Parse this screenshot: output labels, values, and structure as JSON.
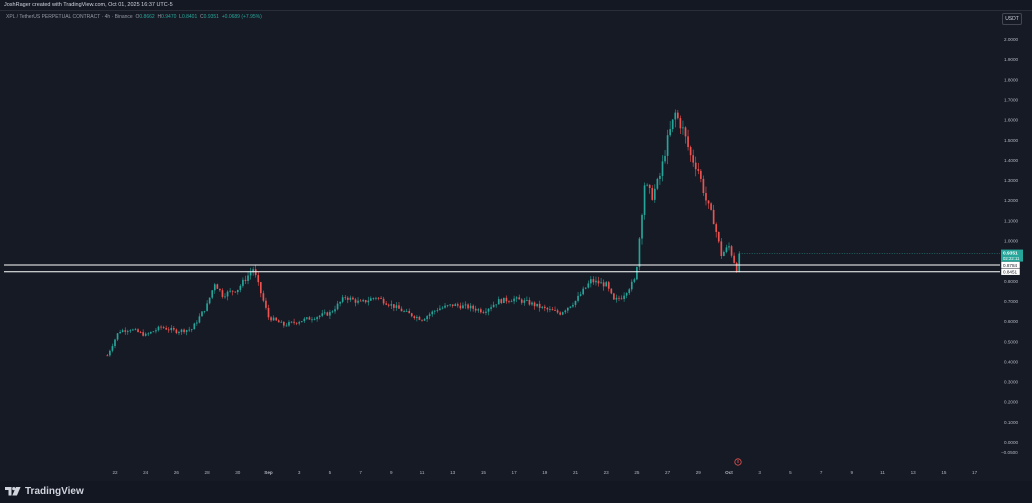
{
  "header": {
    "attribution": "JoshRager created with TradingView.com, Oct 01, 2025 16:37 UTC-5",
    "currency": "USDT"
  },
  "symbol": {
    "name": "XPL / TetherUS PERPETUAL CONTRACT · 4h · Binance",
    "open_label": "O",
    "open": "0.8662",
    "high_label": "H",
    "high": "0.9470",
    "low_label": "L",
    "low": "0.8401",
    "close_label": "C",
    "close": "0.9351",
    "change": "+0.0689 (+7.95%)"
  },
  "footer": {
    "brand": "TradingView"
  },
  "colors": {
    "up": "#26a69a",
    "down": "#ef5350",
    "bg": "#161a25",
    "grid": "#1f2330",
    "level": "#ffffff"
  },
  "icons": [
    "tradingview-logo-icon",
    "event-marker-icon"
  ],
  "chart_data": {
    "type": "candlestick",
    "timeframe": "4h",
    "y_axis": {
      "min": -0.05,
      "max": 2.0,
      "ticks": [
        "2.0000",
        "1.9000",
        "1.8000",
        "1.7000",
        "1.6000",
        "1.5000",
        "1.4000",
        "1.3000",
        "1.2000",
        "1.1000",
        "1.0000",
        "0.9000",
        "0.8000",
        "0.7000",
        "0.6000",
        "0.5000",
        "0.4000",
        "0.3000",
        "0.2000",
        "0.1000",
        "0.0000"
      ],
      "neg_tick": "−0.0500"
    },
    "x_axis": {
      "ticks": [
        "22",
        "24",
        "26",
        "28",
        "30",
        "Sep",
        "3",
        "5",
        "7",
        "9",
        "11",
        "13",
        "15",
        "17",
        "19",
        "21",
        "23",
        "25",
        "27",
        "29",
        "Oct",
        "3",
        "5",
        "7",
        "9",
        "11",
        "13",
        "15",
        "17"
      ]
    },
    "levels": [
      0.8784,
      0.8451
    ],
    "level_labels": [
      "0.8784",
      "0.8451"
    ],
    "last_price": "0.9351",
    "countdown": "02:22:11",
    "anchors": [
      [
        "Aug 21 12:00",
        0.43
      ],
      [
        "Aug 22 06:00",
        0.55
      ],
      [
        "Aug 23",
        0.56
      ],
      [
        "Aug 24",
        0.53
      ],
      [
        "Aug 25",
        0.57
      ],
      [
        "Aug 26",
        0.55
      ],
      [
        "Aug 27",
        0.56
      ],
      [
        "Aug 28",
        0.68
      ],
      [
        "Aug 28 12:00",
        0.79
      ],
      [
        "Aug 29",
        0.73
      ],
      [
        "Aug 30",
        0.76
      ],
      [
        "Aug 31",
        0.86
      ],
      [
        "Sep 1",
        0.62
      ],
      [
        "Sep 2",
        0.58
      ],
      [
        "Sep 3",
        0.6
      ],
      [
        "Sep 4",
        0.62
      ],
      [
        "Sep 5",
        0.64
      ],
      [
        "Sep 6",
        0.72
      ],
      [
        "Sep 7",
        0.69
      ],
      [
        "Sep 8",
        0.72
      ],
      [
        "Sep 9",
        0.68
      ],
      [
        "Sep 10",
        0.64
      ],
      [
        "Sep 11",
        0.61
      ],
      [
        "Sep 12",
        0.66
      ],
      [
        "Sep 13",
        0.68
      ],
      [
        "Sep 14",
        0.67
      ],
      [
        "Sep 15",
        0.65
      ],
      [
        "Sep 16",
        0.7
      ],
      [
        "Sep 17",
        0.71
      ],
      [
        "Sep 18",
        0.69
      ],
      [
        "Sep 19",
        0.66
      ],
      [
        "Sep 20",
        0.64
      ],
      [
        "Sep 21",
        0.7
      ],
      [
        "Sep 22",
        0.8
      ],
      [
        "Sep 23",
        0.78
      ],
      [
        "Sep 23 12:00",
        0.7
      ],
      [
        "Sep 24",
        0.72
      ],
      [
        "Sep 24 20:00",
        0.8
      ],
      [
        "Sep 25",
        0.88
      ],
      [
        "Sep 25 12:00",
        1.28
      ],
      [
        "Sep 26",
        1.22
      ],
      [
        "Sep 26 12:00",
        1.32
      ],
      [
        "Sep 27",
        1.5
      ],
      [
        "Sep 27 12:00",
        1.63
      ],
      [
        "Sep 28",
        1.55
      ],
      [
        "Sep 28 12:00",
        1.42
      ],
      [
        "Sep 29",
        1.35
      ],
      [
        "Sep 29 12:00",
        1.2
      ],
      [
        "Sep 30",
        1.1
      ],
      [
        "Sep 30 12:00",
        0.93
      ],
      [
        "Oct 1",
        0.97
      ],
      [
        "Oct 1 12:00",
        0.86
      ],
      [
        "Oct 1 16:00",
        0.935
      ]
    ]
  }
}
